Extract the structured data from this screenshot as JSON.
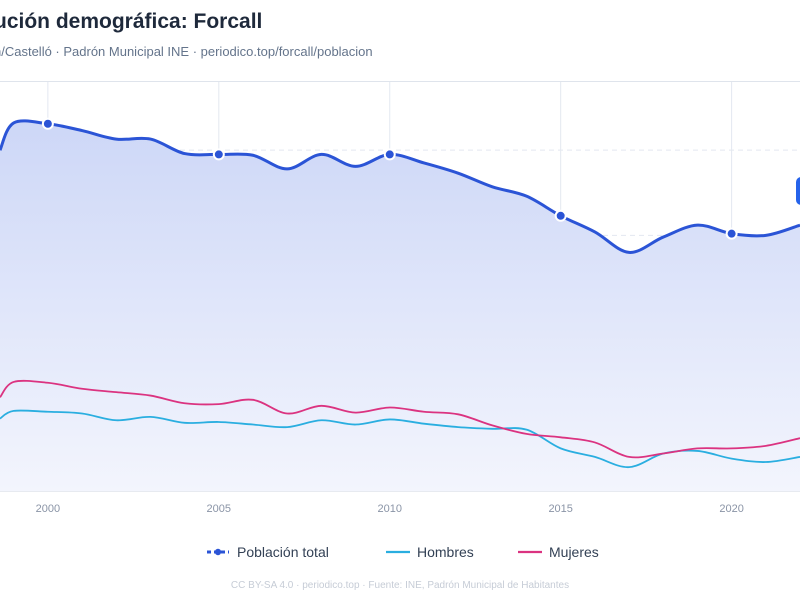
{
  "title": "ución demográfica: Forcall",
  "subtitle": "n/Castelló · Padrón Municipal INE · periodico.top/forcall/poblacion",
  "footer": "CC BY-SA 4.0 · periodico.top · Fuente: INE, Padrón Municipal de Habitantes",
  "colors": {
    "total": "#2b54d6",
    "total_fill": "#dde4fb",
    "hombres": "#2aaee0",
    "mujeres": "#db3380",
    "grid": "#e3e8f0"
  },
  "chart_data": {
    "type": "line",
    "title": "ución demográfica: Forcall",
    "xlim": [
      1998.6,
      2022.0
    ],
    "ylim": [
      0,
      480
    ],
    "x_ticks": [
      2000,
      2005,
      2010,
      2015,
      2020
    ],
    "x": [
      1998.6,
      1999,
      2000,
      2001,
      2002,
      2003,
      2004,
      2005,
      2006,
      2007,
      2008,
      2009,
      2010,
      2011,
      2012,
      2013,
      2014,
      2015,
      2016,
      2017,
      2018,
      2019,
      2020,
      2021,
      2022
    ],
    "series": [
      {
        "name": "Población total",
        "values": [
          400,
          432,
          431,
          423,
          413,
          413,
          396,
          395,
          394,
          378,
          395,
          381,
          395,
          385,
          373,
          357,
          346,
          323,
          304,
          280,
          298,
          312,
          302,
          300,
          312
        ],
        "markers_at": [
          2000,
          2005,
          2010,
          2015,
          2020
        ]
      },
      {
        "name": "Hombres",
        "values": [
          85,
          94,
          93,
          91,
          83,
          87,
          80,
          81,
          78,
          75,
          83,
          78,
          84,
          79,
          75,
          73,
          72,
          50,
          40,
          28,
          44,
          47,
          38,
          34,
          40
        ]
      },
      {
        "name": "Mujeres",
        "values": [
          110,
          128,
          127,
          120,
          116,
          112,
          103,
          102,
          107,
          91,
          100,
          92,
          98,
          93,
          90,
          77,
          67,
          63,
          57,
          40,
          44,
          50,
          50,
          53,
          62
        ]
      }
    ],
    "legend": [
      "Población total",
      "Hombres",
      "Mujeres"
    ],
    "legend_position": "bottom",
    "grid": true
  }
}
